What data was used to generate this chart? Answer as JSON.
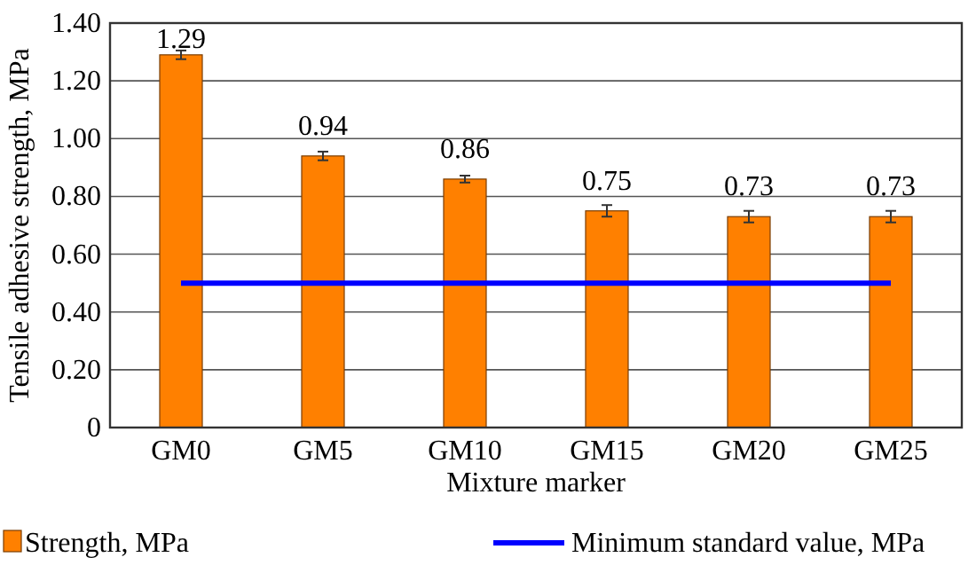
{
  "chart_data": {
    "type": "bar",
    "xlabel": "Mixture marker",
    "ylabel": "Tensile adhesive strength, MPa",
    "categories": [
      "GM0",
      "GM5",
      "GM10",
      "GM15",
      "GM20",
      "GM25"
    ],
    "series": [
      {
        "name": "Strength, MPa",
        "color": "#ff8000",
        "values": [
          1.29,
          0.94,
          0.86,
          0.75,
          0.73,
          0.73
        ],
        "value_labels": [
          "1.29",
          "0.94",
          "0.86",
          "0.75",
          "0.73",
          "0.73"
        ],
        "errors": [
          0.015,
          0.015,
          0.012,
          0.02,
          0.02,
          0.02
        ]
      },
      {
        "name": "Minimum standard value, MPa",
        "type": "line",
        "color": "#0000ff",
        "values": [
          0.5,
          0.5,
          0.5,
          0.5,
          0.5,
          0.5
        ]
      }
    ],
    "ylim": [
      0,
      1.4
    ],
    "yticks": [
      {
        "value": 0,
        "label": "0"
      },
      {
        "value": 0.2,
        "label": "0.20"
      },
      {
        "value": 0.4,
        "label": "0.40"
      },
      {
        "value": 0.6,
        "label": "0.60"
      },
      {
        "value": 0.8,
        "label": "0.80"
      },
      {
        "value": 1,
        "label": "1.00"
      },
      {
        "value": 1.2,
        "label": "1.20"
      },
      {
        "value": 1.4,
        "label": "1.40"
      }
    ],
    "grid": "y",
    "legend": "bottom",
    "marker": "none",
    "line_style": "solid"
  }
}
